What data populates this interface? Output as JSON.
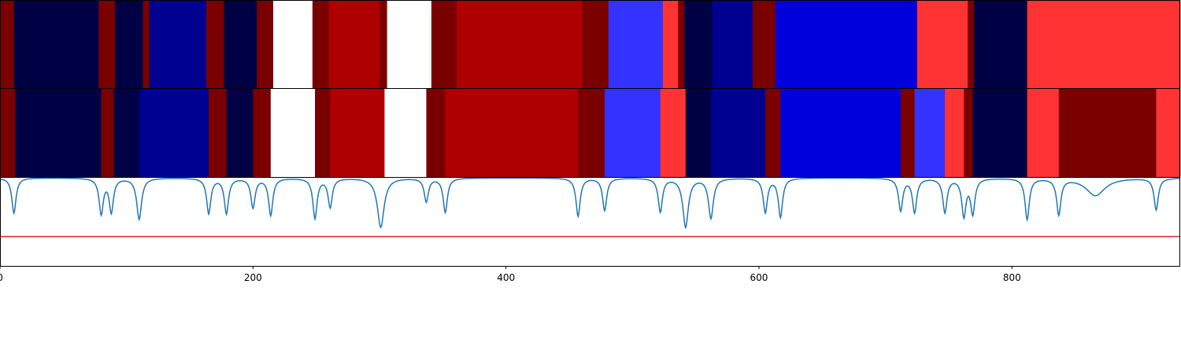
{
  "chart_data": {
    "type": "heatmap",
    "title": "",
    "xlabel": "",
    "ylabel": "",
    "xlim": [
      0,
      933
    ],
    "x_ticks": [
      0,
      200,
      400,
      600,
      800
    ],
    "x_tick_labels": [
      "0",
      "200",
      "400",
      "600",
      "800"
    ],
    "grid": false,
    "palette": {
      "dark_navy": "#000044",
      "navy": "#000090",
      "blue": "#0000dd",
      "light_blue": "#3333ff",
      "maroon": "#7a0000",
      "dark_red": "#ae0000",
      "red": "#ff3333",
      "white": "#ffffff"
    },
    "row1": [
      {
        "start": 0,
        "end": 11,
        "color": "maroon"
      },
      {
        "start": 11,
        "end": 78,
        "color": "dark_navy"
      },
      {
        "start": 78,
        "end": 91,
        "color": "maroon"
      },
      {
        "start": 91,
        "end": 113,
        "color": "dark_navy"
      },
      {
        "start": 113,
        "end": 118,
        "color": "maroon"
      },
      {
        "start": 118,
        "end": 163,
        "color": "navy"
      },
      {
        "start": 163,
        "end": 177,
        "color": "maroon"
      },
      {
        "start": 177,
        "end": 203,
        "color": "dark_navy"
      },
      {
        "start": 203,
        "end": 216,
        "color": "maroon"
      },
      {
        "start": 216,
        "end": 247,
        "color": "white"
      },
      {
        "start": 247,
        "end": 260,
        "color": "maroon"
      },
      {
        "start": 260,
        "end": 300,
        "color": "dark_red"
      },
      {
        "start": 300,
        "end": 306,
        "color": "maroon"
      },
      {
        "start": 306,
        "end": 341,
        "color": "white"
      },
      {
        "start": 341,
        "end": 361,
        "color": "maroon"
      },
      {
        "start": 361,
        "end": 460,
        "color": "dark_red"
      },
      {
        "start": 460,
        "end": 481,
        "color": "maroon"
      },
      {
        "start": 481,
        "end": 524,
        "color": "light_blue"
      },
      {
        "start": 524,
        "end": 536,
        "color": "red"
      },
      {
        "start": 536,
        "end": 541,
        "color": "maroon"
      },
      {
        "start": 541,
        "end": 563,
        "color": "dark_navy"
      },
      {
        "start": 563,
        "end": 595,
        "color": "navy"
      },
      {
        "start": 595,
        "end": 613,
        "color": "maroon"
      },
      {
        "start": 613,
        "end": 725,
        "color": "blue"
      },
      {
        "start": 725,
        "end": 765,
        "color": "red"
      },
      {
        "start": 765,
        "end": 770,
        "color": "maroon"
      },
      {
        "start": 770,
        "end": 812,
        "color": "dark_navy"
      },
      {
        "start": 812,
        "end": 933,
        "color": "red"
      }
    ],
    "row2": [
      {
        "start": 0,
        "end": 12,
        "color": "maroon"
      },
      {
        "start": 12,
        "end": 80,
        "color": "dark_navy"
      },
      {
        "start": 80,
        "end": 90,
        "color": "maroon"
      },
      {
        "start": 90,
        "end": 110,
        "color": "dark_navy"
      },
      {
        "start": 110,
        "end": 165,
        "color": "navy"
      },
      {
        "start": 165,
        "end": 179,
        "color": "maroon"
      },
      {
        "start": 179,
        "end": 200,
        "color": "dark_navy"
      },
      {
        "start": 200,
        "end": 214,
        "color": "maroon"
      },
      {
        "start": 214,
        "end": 249,
        "color": "white"
      },
      {
        "start": 249,
        "end": 261,
        "color": "maroon"
      },
      {
        "start": 261,
        "end": 304,
        "color": "dark_red"
      },
      {
        "start": 304,
        "end": 337,
        "color": "white"
      },
      {
        "start": 337,
        "end": 352,
        "color": "maroon"
      },
      {
        "start": 352,
        "end": 457,
        "color": "dark_red"
      },
      {
        "start": 457,
        "end": 478,
        "color": "maroon"
      },
      {
        "start": 478,
        "end": 522,
        "color": "light_blue"
      },
      {
        "start": 522,
        "end": 542,
        "color": "red"
      },
      {
        "start": 542,
        "end": 562,
        "color": "dark_navy"
      },
      {
        "start": 562,
        "end": 605,
        "color": "navy"
      },
      {
        "start": 605,
        "end": 617,
        "color": "maroon"
      },
      {
        "start": 617,
        "end": 712,
        "color": "blue"
      },
      {
        "start": 712,
        "end": 723,
        "color": "maroon"
      },
      {
        "start": 723,
        "end": 747,
        "color": "light_blue"
      },
      {
        "start": 747,
        "end": 762,
        "color": "red"
      },
      {
        "start": 762,
        "end": 769,
        "color": "maroon"
      },
      {
        "start": 769,
        "end": 812,
        "color": "dark_navy"
      },
      {
        "start": 812,
        "end": 837,
        "color": "red"
      },
      {
        "start": 837,
        "end": 914,
        "color": "maroon"
      },
      {
        "start": 914,
        "end": 933,
        "color": "red"
      }
    ],
    "line_series": {
      "color": "#1f77b4",
      "ylim": [
        0,
        1.5
      ],
      "baseline": 0,
      "dips": [
        {
          "x": 11,
          "depth": 0.6,
          "width": 2.0
        },
        {
          "x": 80,
          "depth": 0.6,
          "width": 2.0
        },
        {
          "x": 88,
          "depth": 0.57,
          "width": 2.0
        },
        {
          "x": 110,
          "depth": 0.7,
          "width": 2.3
        },
        {
          "x": 165,
          "depth": 0.6,
          "width": 2.0
        },
        {
          "x": 179,
          "depth": 0.6,
          "width": 2.0
        },
        {
          "x": 200,
          "depth": 0.5,
          "width": 2.0
        },
        {
          "x": 214,
          "depth": 0.63,
          "width": 2.0
        },
        {
          "x": 249,
          "depth": 0.68,
          "width": 2.0
        },
        {
          "x": 261,
          "depth": 0.49,
          "width": 2.0
        },
        {
          "x": 301,
          "depth": 0.84,
          "width": 3.2
        },
        {
          "x": 337,
          "depth": 0.4,
          "width": 2.0
        },
        {
          "x": 352,
          "depth": 0.58,
          "width": 2.0
        },
        {
          "x": 457,
          "depth": 0.65,
          "width": 2.0
        },
        {
          "x": 478,
          "depth": 0.55,
          "width": 2.0
        },
        {
          "x": 522,
          "depth": 0.57,
          "width": 2.0
        },
        {
          "x": 542,
          "depth": 0.83,
          "width": 2.6
        },
        {
          "x": 562,
          "depth": 0.68,
          "width": 2.3
        },
        {
          "x": 605,
          "depth": 0.58,
          "width": 2.0
        },
        {
          "x": 617,
          "depth": 0.66,
          "width": 2.0
        },
        {
          "x": 712,
          "depth": 0.55,
          "width": 2.0
        },
        {
          "x": 723,
          "depth": 0.58,
          "width": 2.0
        },
        {
          "x": 747,
          "depth": 0.58,
          "width": 2.0
        },
        {
          "x": 762,
          "depth": 0.63,
          "width": 2.0
        },
        {
          "x": 769,
          "depth": 0.59,
          "width": 2.0
        },
        {
          "x": 812,
          "depth": 0.7,
          "width": 2.0
        },
        {
          "x": 837,
          "depth": 0.61,
          "width": 2.0
        },
        {
          "x": 866,
          "depth": 0.3,
          "width": 9.0
        },
        {
          "x": 914,
          "depth": 0.54,
          "width": 2.0
        }
      ]
    },
    "threshold_line": {
      "y": 1.0,
      "color": "#d62728"
    }
  }
}
